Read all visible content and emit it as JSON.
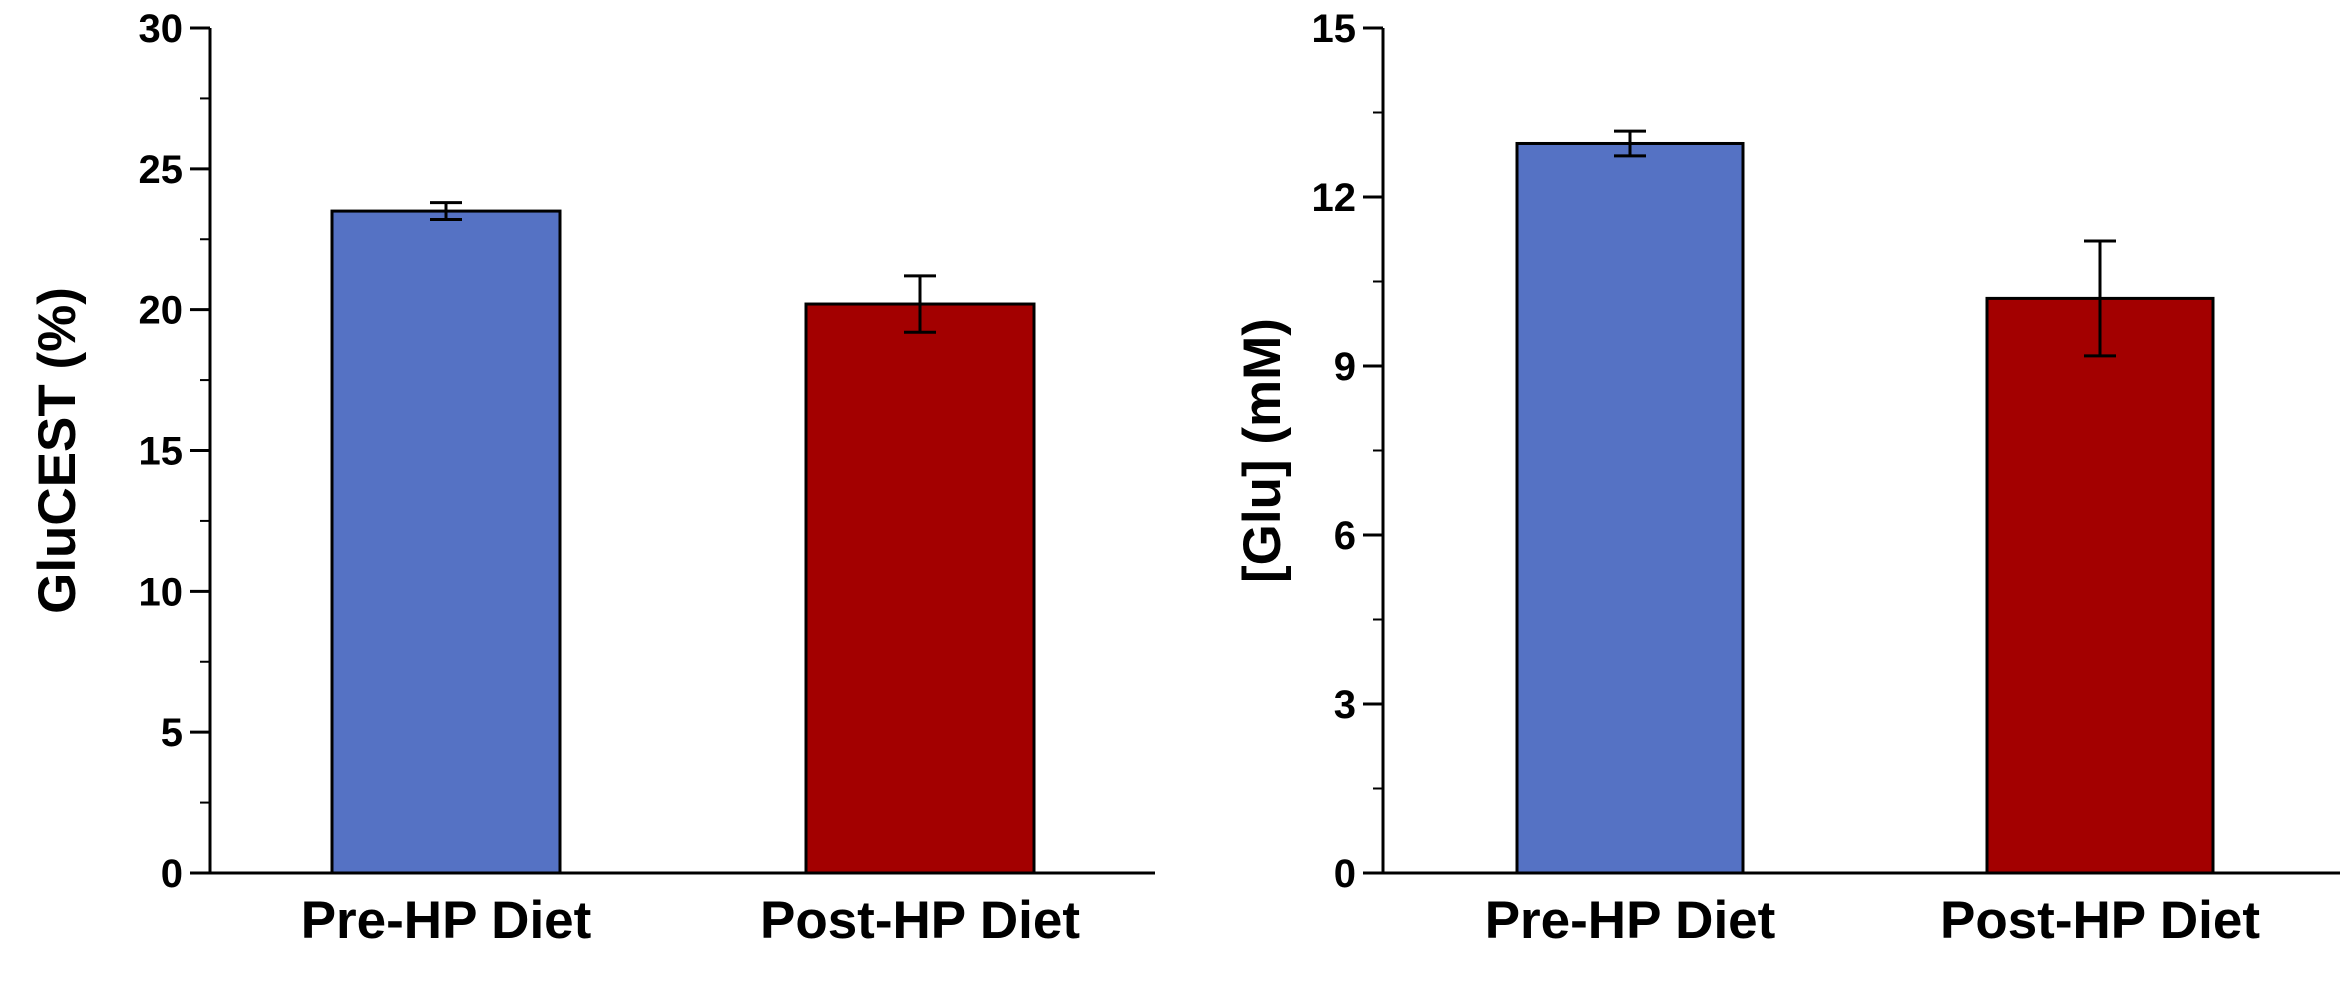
{
  "chart_data": [
    {
      "type": "bar",
      "title": "",
      "xlabel": "",
      "ylabel": "GluCEST (%)",
      "categories": [
        "Pre-HP Diet",
        "Post-HP Diet"
      ],
      "values": [
        23.5,
        20.2
      ],
      "errors": [
        0.3,
        1.0
      ],
      "colors": [
        "#5572c4",
        "#a30000"
      ],
      "ylim": [
        0,
        30
      ],
      "yticks": [
        0,
        5,
        10,
        15,
        20,
        25,
        30
      ],
      "minor_tick_step": 2.5,
      "grid": false
    },
    {
      "type": "bar",
      "title": "",
      "xlabel": "",
      "ylabel": "[Glu] (mM)",
      "categories": [
        "Pre-HP Diet",
        "Post-HP Diet"
      ],
      "values": [
        12.95,
        10.2
      ],
      "errors": [
        0.22,
        1.02
      ],
      "colors": [
        "#5572c4",
        "#a30000"
      ],
      "ylim": [
        0,
        15
      ],
      "yticks": [
        0,
        3,
        6,
        9,
        12,
        15
      ],
      "minor_tick_step": 1.5,
      "grid": false
    }
  ]
}
